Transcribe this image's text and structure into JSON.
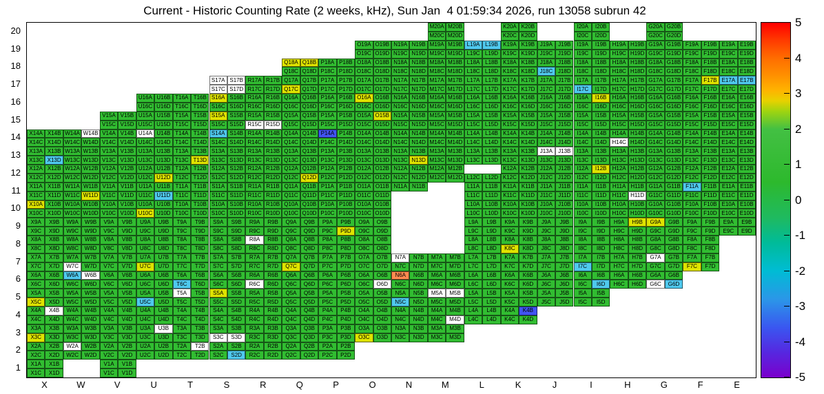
{
  "chart_data": {
    "type": "heatmap",
    "title": "Current - Historic Counting Rate (2 weeks, kHz), Sun Jan  4 01:59:34 2026, run 13058 subrun 42",
    "columns": [
      "X",
      "W",
      "V",
      "U",
      "T",
      "S",
      "R",
      "Q",
      "P",
      "O",
      "N",
      "M",
      "L",
      "K",
      "J",
      "I",
      "H",
      "G",
      "F",
      "E"
    ],
    "row_labels": [
      20,
      19,
      18,
      17,
      16,
      15,
      14,
      13,
      12,
      11,
      10,
      9,
      8,
      7,
      6,
      5,
      4,
      3,
      2,
      1
    ],
    "subcells": [
      "A",
      "B",
      "C",
      "D"
    ],
    "cell_label_pattern": "{column}{row}{subcell}",
    "occupancy": [
      {
        "row": 20,
        "cols": [
          "M",
          "K",
          "I",
          "G"
        ]
      },
      {
        "row": 19,
        "cols": [
          "O",
          "N",
          "M",
          "L",
          "K",
          "J",
          "I",
          "H",
          "G",
          "F",
          "E"
        ]
      },
      {
        "row": 18,
        "cols": [
          "Q",
          "P",
          "O",
          "N",
          "M",
          "L",
          "K",
          "J",
          "I",
          "H",
          "G",
          "F",
          "E"
        ]
      },
      {
        "row": 17,
        "cols": [
          "S",
          "R",
          "Q",
          "P",
          "O",
          "N",
          "M",
          "L",
          "K",
          "J",
          "I",
          "H",
          "G",
          "F",
          "E"
        ]
      },
      {
        "row": 16,
        "cols": [
          "U",
          "T",
          "S",
          "R",
          "Q",
          "P",
          "O",
          "N",
          "M",
          "L",
          "K",
          "J",
          "I",
          "H",
          "G",
          "F",
          "E"
        ]
      },
      {
        "row": 15,
        "cols": [
          "V",
          "U",
          "T",
          "S",
          "R",
          "Q",
          "P",
          "O",
          "N",
          "M",
          "L",
          "K",
          "J",
          "I",
          "H",
          "G",
          "F",
          "E"
        ]
      },
      {
        "row": 14,
        "cols": [
          "X",
          "W",
          "V",
          "U",
          "T",
          "S",
          "R",
          "Q",
          "P",
          "O",
          "N",
          "M",
          "L",
          "K",
          "J",
          "I",
          "H",
          "G",
          "F",
          "E"
        ]
      },
      {
        "row": 13,
        "cols": [
          "X",
          "W",
          "V",
          "U",
          "T",
          "S",
          "R",
          "Q",
          "P",
          "O",
          "N",
          "M",
          "L",
          "K",
          "J",
          "I",
          "H",
          "G",
          "F",
          "E"
        ]
      },
      {
        "row": 12,
        "cols": [
          "X",
          "W",
          "V",
          "U",
          "T",
          "S",
          "R",
          "Q",
          "P",
          "O",
          "N",
          "M",
          "L",
          "K",
          "J",
          "I",
          "H",
          "G",
          "F",
          "E"
        ]
      },
      {
        "row": 11,
        "cols": [
          "X",
          "W",
          "V",
          "U",
          "T",
          "S",
          "R",
          "Q",
          "P",
          "O",
          "N",
          "L",
          "K",
          "J",
          "I",
          "H",
          "G",
          "F",
          "E"
        ]
      },
      {
        "row": 10,
        "cols": [
          "X",
          "W",
          "V",
          "U",
          "T",
          "S",
          "R",
          "Q",
          "P",
          "O",
          "L",
          "K",
          "J",
          "I",
          "H",
          "G",
          "F",
          "E"
        ]
      },
      {
        "row": 9,
        "cols": [
          "X",
          "W",
          "V",
          "U",
          "T",
          "S",
          "R",
          "Q",
          "P",
          "O",
          "L",
          "K",
          "J",
          "I",
          "H",
          "G",
          "F",
          "E"
        ]
      },
      {
        "row": 8,
        "cols": [
          "X",
          "W",
          "V",
          "U",
          "T",
          "S",
          "R",
          "Q",
          "P",
          "O",
          "L",
          "K",
          "J",
          "I",
          "H",
          "G",
          "F"
        ]
      },
      {
        "row": 7,
        "cols": [
          "X",
          "W",
          "V",
          "U",
          "T",
          "S",
          "R",
          "Q",
          "P",
          "O",
          "N",
          "M",
          "L",
          "K",
          "J",
          "I",
          "H",
          "G",
          "F"
        ]
      },
      {
        "row": 6,
        "cols": [
          "X",
          "W",
          "V",
          "U",
          "T",
          "S",
          "R",
          "Q",
          "P",
          "O",
          "N",
          "M",
          "L",
          "K",
          "J",
          "I",
          "H",
          "G"
        ]
      },
      {
        "row": 5,
        "cols": [
          "X",
          "W",
          "V",
          "U",
          "T",
          "S",
          "R",
          "Q",
          "P",
          "O",
          "N",
          "M",
          "L",
          "K",
          "J",
          "I"
        ]
      },
      {
        "row": 4,
        "cols": [
          "X",
          "W",
          "V",
          "U",
          "T",
          "S",
          "R",
          "Q",
          "P",
          "O",
          "N",
          "M",
          "L",
          "K"
        ]
      },
      {
        "row": 3,
        "cols": [
          "X",
          "W",
          "V",
          "U",
          "T",
          "S",
          "R",
          "Q",
          "P",
          "O",
          "N",
          "M"
        ]
      },
      {
        "row": 2,
        "cols": [
          "X",
          "W",
          "V",
          "U",
          "T",
          "S",
          "R",
          "Q",
          "P"
        ]
      },
      {
        "row": 1,
        "cols": [
          "X",
          "V"
        ]
      }
    ],
    "absent_subcells": [
      "L12A",
      "L12B",
      "N11C",
      "N11D"
    ],
    "special_cells": {
      "L19A": "cyan",
      "L19B": "cyan",
      "Q18A": "yellow",
      "Q18B": "yellow",
      "J18C": "cyan",
      "S17A": "white",
      "S17B": "white",
      "S17C": "white",
      "S17D": "white",
      "Q17C": "yellow",
      "I17C": "cyan",
      "F17B": "yellow",
      "E17A": "cyan",
      "E17B": "cyan",
      "S16A": "yellow",
      "O16A": "yellow",
      "I16B": "yellow",
      "S15A": "yellow",
      "O15B": "yellow",
      "R15C": "white",
      "R15D": "white",
      "S14A": "cyan",
      "P14A": "blue",
      "W14B": "white",
      "U14A": "white",
      "H14C": "white",
      "X13D": "cyan",
      "T13D": "yellow",
      "N13D": "yellow",
      "J13A": "white",
      "J13B": "white",
      "U12D": "yellow",
      "Q12D": "yellow",
      "I12B": "yellow",
      "W11D": "yellow",
      "U11D": "cyan",
      "F11A": "cyan",
      "H11D": "white",
      "X10A": "yellow",
      "U10C": "yellow",
      "P9D": "yellow",
      "H9B": "yellow",
      "G9A": "yellow",
      "R8A": "white",
      "K8C": "yellow",
      "W7C": "white",
      "U7C": "yellow",
      "Q7C": "yellow",
      "N7A": "white",
      "I7C": "cyan",
      "G7A": "white",
      "F7C": "yellow",
      "W6A": "cyan",
      "W6B": "white",
      "T6C": "cyan",
      "R6C": "white",
      "O6D": "white",
      "N6A": "orange",
      "I6D": "cyan",
      "G6C": "white",
      "G6D": "cyan",
      "X5C": "yellow",
      "U5C": "cyan",
      "T5A": "white",
      "S5A": "yellow",
      "N5C": "cyan",
      "M5A": "white",
      "M5B": "white",
      "X4B": "white",
      "M4D": "white",
      "K4B": "blue",
      "X3C": "yellow",
      "U3B": "white",
      "S3C": "white",
      "S3D": "white",
      "O3C": "yellow",
      "W2A": "white",
      "T2B": "white",
      "S2D": "cyan"
    },
    "palette": {
      "base": {
        "color": "#31bd31",
        "approx_value": 0.5
      },
      "yellow": {
        "color": "#dfe300",
        "approx_value": 2.5
      },
      "cyan": {
        "color": "#4fc9ee",
        "approx_value": -2
      },
      "blue": {
        "color": "#4153f2",
        "approx_value": -3.5
      },
      "orange": {
        "color": "#ff8a50",
        "approx_value": 4
      },
      "white": {
        "color": "#ffffff",
        "approx_value": null
      }
    },
    "colorbar": {
      "max": 5,
      "min": -5,
      "ticks": [
        5,
        4,
        3,
        2,
        1,
        0,
        -1,
        -2,
        -3,
        -4,
        -5
      ],
      "gradient": [
        {
          "pos": 0,
          "color": "#ff0000"
        },
        {
          "pos": 5,
          "color": "#ff3b00"
        },
        {
          "pos": 10,
          "color": "#ff6d00"
        },
        {
          "pos": 15,
          "color": "#ff9100"
        },
        {
          "pos": 19,
          "color": "#ffb300"
        },
        {
          "pos": 22,
          "color": "#e8d100"
        },
        {
          "pos": 25,
          "color": "#9fd410"
        },
        {
          "pos": 30,
          "color": "#43c043"
        },
        {
          "pos": 45,
          "color": "#2db92d"
        },
        {
          "pos": 55,
          "color": "#1fba60"
        },
        {
          "pos": 62,
          "color": "#00bb99"
        },
        {
          "pos": 70,
          "color": "#00bcd4"
        },
        {
          "pos": 78,
          "color": "#2b96e8"
        },
        {
          "pos": 86,
          "color": "#3a56f0"
        },
        {
          "pos": 93,
          "color": "#5627e0"
        },
        {
          "pos": 100,
          "color": "#7a00cc"
        }
      ]
    }
  }
}
